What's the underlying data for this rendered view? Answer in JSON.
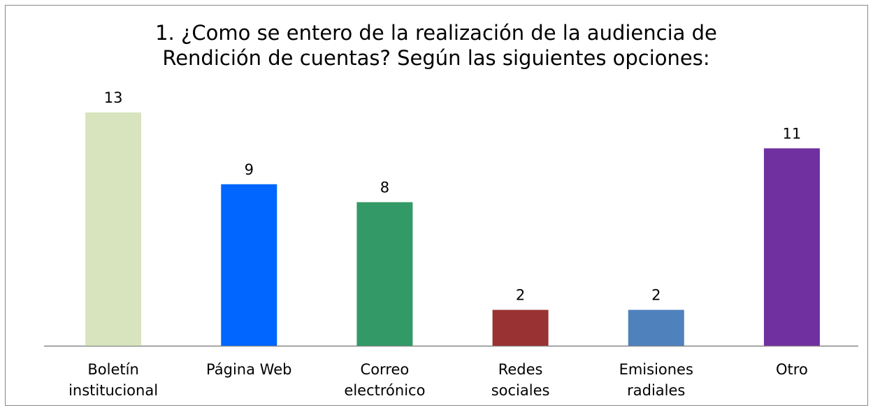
{
  "chart_data": {
    "type": "bar",
    "title": "1. ¿Como se entero de la realización de la audiencia de\nRendición de cuentas? Según las siguientes opciones:",
    "categories": [
      "Boletín\ninstitucional",
      "Página Web",
      "Correo\nelectrónico",
      "Redes\nsociales",
      "Emisiones\nradiales",
      "Otro"
    ],
    "values": [
      13,
      9,
      8,
      2,
      2,
      11
    ],
    "colors": [
      "#d7e4bd",
      "#0066ff",
      "#339966",
      "#993333",
      "#4f81bd",
      "#7030a0"
    ]
  }
}
